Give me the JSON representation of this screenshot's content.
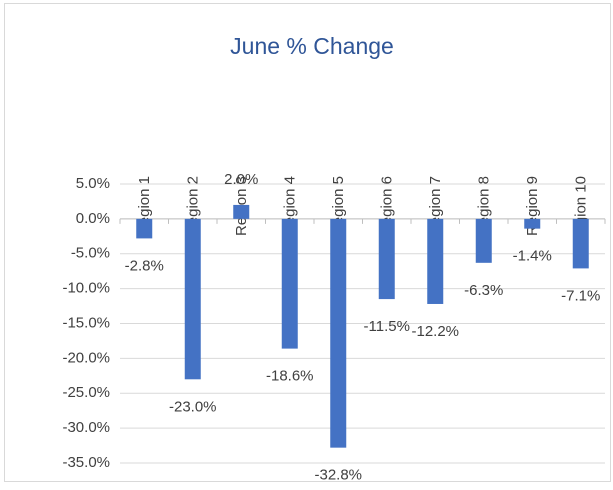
{
  "chart_data": {
    "type": "bar",
    "title": "June % Change",
    "categories": [
      "Region 1",
      "Region 2",
      "Region 3",
      "Region 4",
      "Region 5",
      "Region 6",
      "Region 7",
      "Region 8",
      "Region 9",
      "Region 10"
    ],
    "values": [
      -2.8,
      -23.0,
      2.0,
      -18.6,
      -32.8,
      -11.5,
      -12.2,
      -6.3,
      -1.4,
      -7.1
    ],
    "value_labels": [
      "-2.8%",
      "-23.0%",
      "2.0%",
      "-18.6%",
      "-32.8%",
      "-11.5%",
      "-12.2%",
      "-6.3%",
      "-1.4%",
      "-7.1%"
    ],
    "color": "#4472c4",
    "ylim": [
      -35,
      5
    ],
    "yticks": [
      {
        "value": 5,
        "label": "5.0%"
      },
      {
        "value": 0,
        "label": "0.0%"
      },
      {
        "value": -5,
        "label": "-5.0%"
      },
      {
        "value": -10,
        "label": "-10.0%"
      },
      {
        "value": -15,
        "label": "-15.0%"
      },
      {
        "value": -20,
        "label": "-20.0%"
      },
      {
        "value": -25,
        "label": "-25.0%"
      },
      {
        "value": -30,
        "label": "-30.0%"
      },
      {
        "value": -35,
        "label": "-35.0%"
      }
    ],
    "grid": true
  }
}
